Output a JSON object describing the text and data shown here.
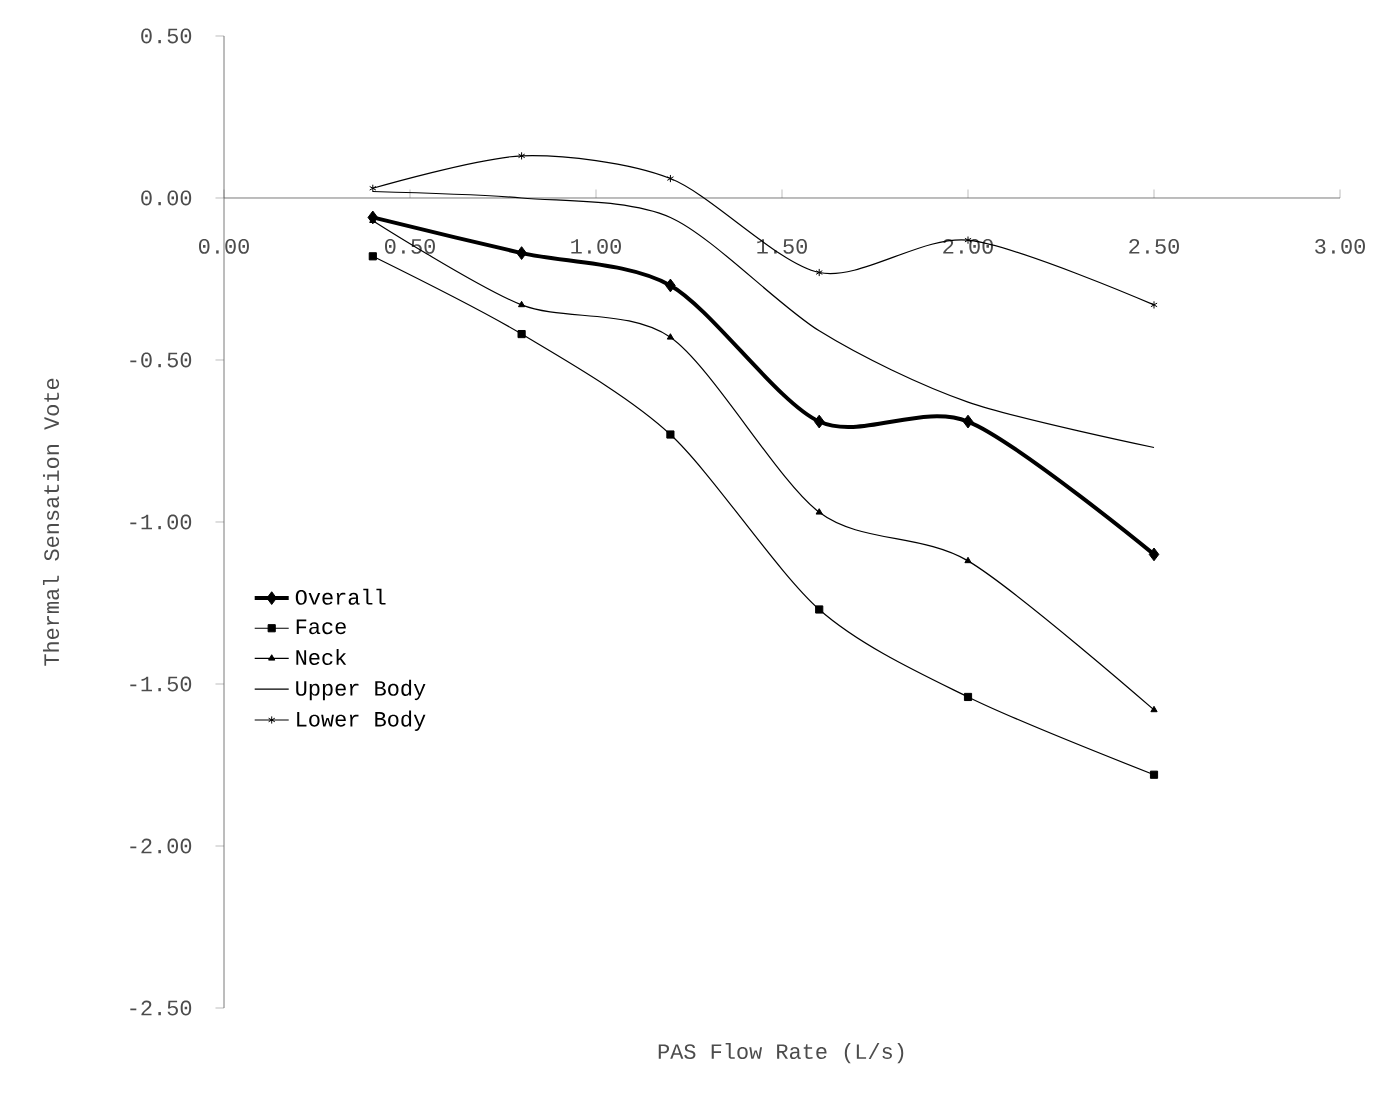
{
  "chart_data": {
    "type": "line",
    "xlabel": "PAS Flow Rate (L/s)",
    "ylabel": "Thermal Sensation Vote",
    "x": [
      0.4,
      0.8,
      1.2,
      1.6,
      2.0,
      2.5
    ],
    "xlim": [
      0,
      3
    ],
    "ylim": [
      -2.5,
      0.5
    ],
    "xticks": [
      {
        "value": 0,
        "label": "0.00"
      },
      {
        "value": 0.5,
        "label": "0.50"
      },
      {
        "value": 1,
        "label": "1.00"
      },
      {
        "value": 1.5,
        "label": "1.50"
      },
      {
        "value": 2,
        "label": "2.00"
      },
      {
        "value": 2.5,
        "label": "2.50"
      },
      {
        "value": 3,
        "label": "3.00"
      }
    ],
    "yticks": [
      {
        "value": 0.5,
        "label": "0.50"
      },
      {
        "value": 0,
        "label": "0.00"
      },
      {
        "value": -0.5,
        "label": "-0.50"
      },
      {
        "value": -1,
        "label": "-1.00"
      },
      {
        "value": -1.5,
        "label": "-1.50"
      },
      {
        "value": -2,
        "label": "-2.00"
      },
      {
        "value": -2.5,
        "label": "-2.50"
      }
    ],
    "legend": "left",
    "grid": false,
    "line_style": "solid",
    "series": [
      {
        "name": "Overall",
        "color": "#000000",
        "marker": "diamond",
        "values": [
          -0.06,
          -0.17,
          -0.27,
          -0.69,
          -0.69,
          -1.1
        ]
      },
      {
        "name": "Face",
        "color": "#000000",
        "marker": "square",
        "values": [
          -0.18,
          -0.42,
          -0.73,
          -1.27,
          -1.54,
          -1.78
        ]
      },
      {
        "name": "Neck",
        "color": "#000000",
        "marker": "triangle",
        "values": [
          -0.07,
          -0.33,
          -0.43,
          -0.97,
          -1.12,
          -1.58
        ]
      },
      {
        "name": "Upper Body",
        "color": "#000000",
        "marker": "none",
        "values": [
          0.02,
          0.0,
          -0.06,
          -0.41,
          -0.63,
          -0.77
        ]
      },
      {
        "name": "Lower Body",
        "color": "#000000",
        "marker": "cross",
        "values": [
          0.03,
          0.13,
          0.06,
          -0.23,
          -0.13,
          -0.33
        ]
      }
    ]
  }
}
